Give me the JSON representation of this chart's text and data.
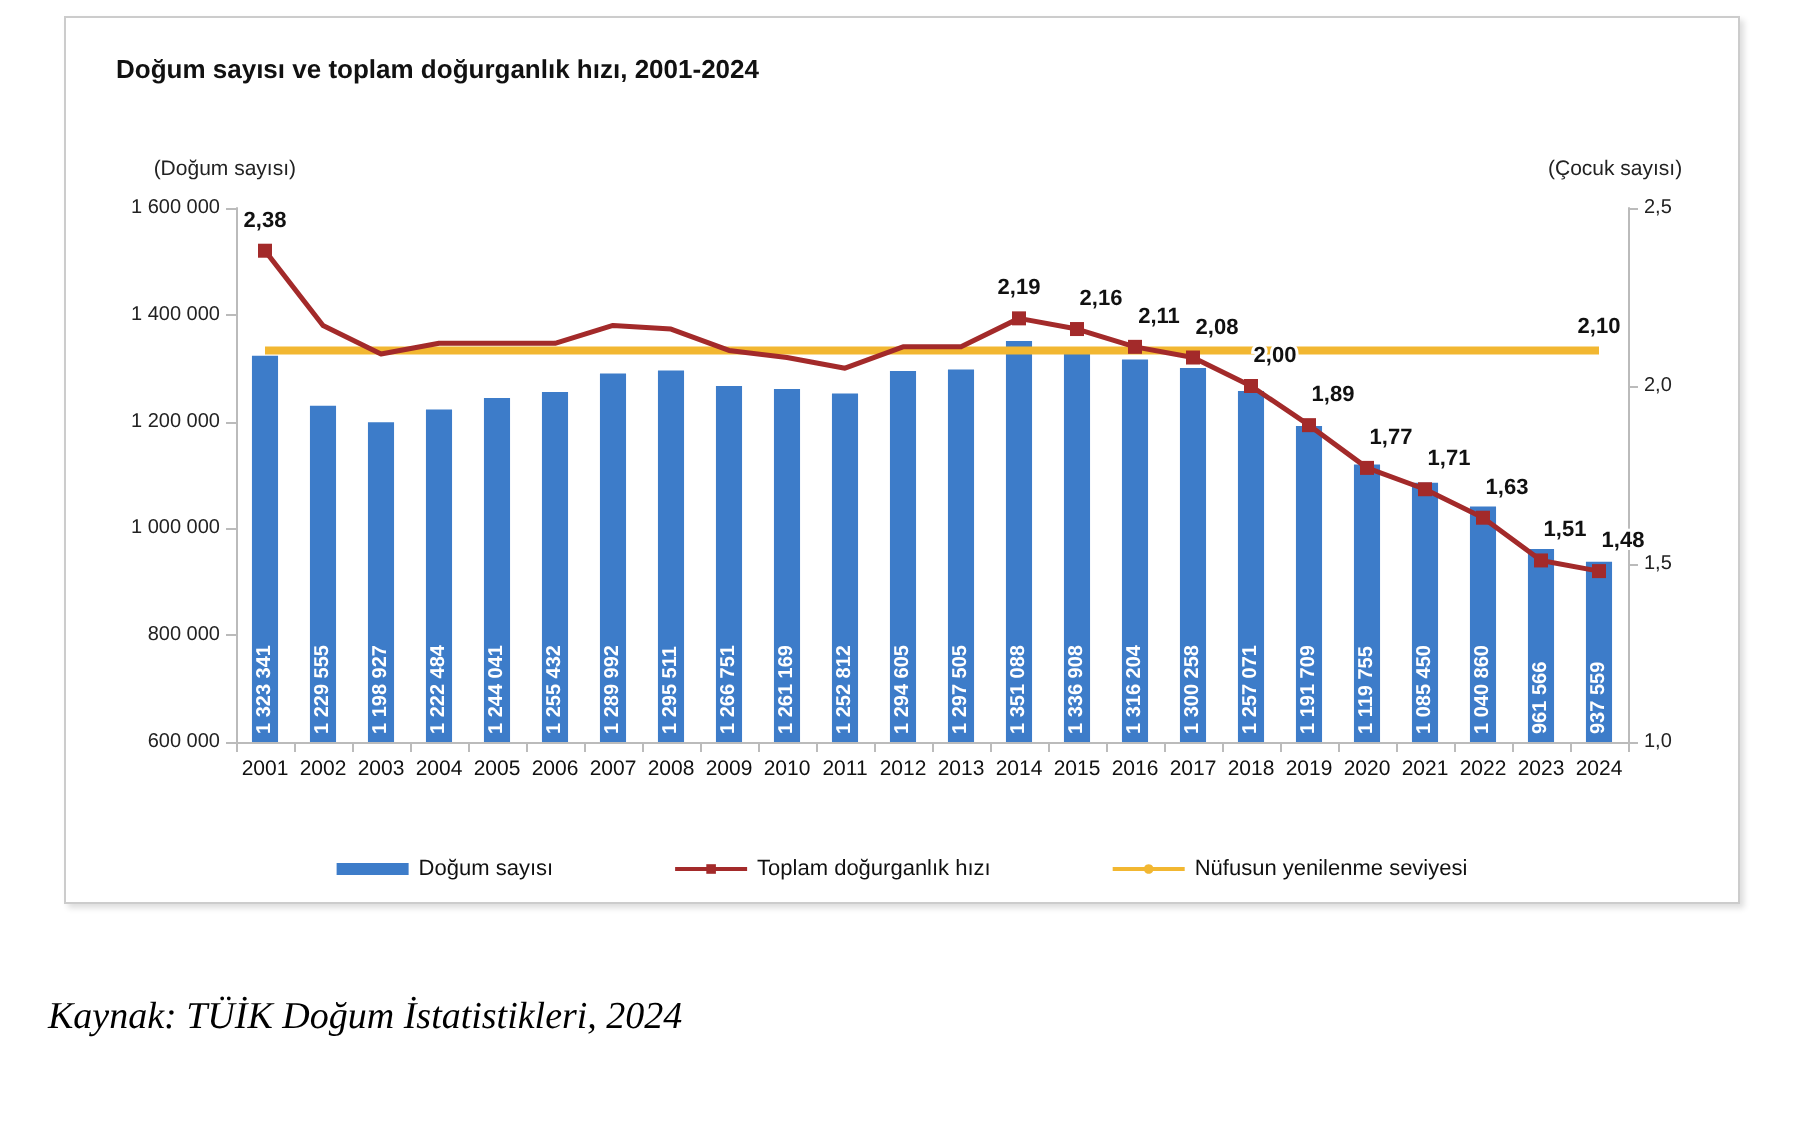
{
  "chart_data": {
    "type": "bar",
    "title": "Doğum sayısı ve toplam doğurganlık hızı, 2001-2024",
    "ylabel": "(Doğum sayısı)",
    "y2label": "(Çocuk sayısı)",
    "categories": [
      "2001",
      "2002",
      "2003",
      "2004",
      "2005",
      "2006",
      "2007",
      "2008",
      "2009",
      "2010",
      "2011",
      "2012",
      "2013",
      "2014",
      "2015",
      "2016",
      "2017",
      "2018",
      "2019",
      "2020",
      "2021",
      "2022",
      "2023",
      "2024"
    ],
    "series": [
      {
        "name": "Doğum sayısı",
        "type": "bar",
        "color": "#3d7cc9",
        "values": [
          1323341,
          1229555,
          1198927,
          1222484,
          1244041,
          1255432,
          1289992,
          1295511,
          1266751,
          1261169,
          1252812,
          1294605,
          1297505,
          1351088,
          1336908,
          1316204,
          1300258,
          1257071,
          1191709,
          1119755,
          1085450,
          1040860,
          961566,
          937559
        ],
        "value_labels": [
          "1 323 341",
          "1 229 555",
          "1 198 927",
          "1 222 484",
          "1 244 041",
          "1 255 432",
          "1 289 992",
          "1 295 511",
          "1 266 751",
          "1 261 169",
          "1 252 812",
          "1 294 605",
          "1 297 505",
          "1 351 088",
          "1 336 908",
          "1 316 204",
          "1 300 258",
          "1 257 071",
          "1 191 709",
          "1 119 755",
          "1 085 450",
          "1 040 860",
          "961 566",
          "937 559"
        ]
      },
      {
        "name": "Toplam doğurganlık hızı",
        "type": "line",
        "axis": "y2",
        "color": "#a32a2a",
        "marker": "square",
        "values": [
          2.38,
          2.17,
          2.09,
          2.12,
          2.12,
          2.12,
          2.17,
          2.16,
          2.1,
          2.08,
          2.05,
          2.11,
          2.11,
          2.19,
          2.16,
          2.11,
          2.08,
          2.0,
          1.89,
          1.77,
          1.71,
          1.63,
          1.51,
          1.48
        ],
        "value_labels": [
          "2,38",
          null,
          null,
          null,
          null,
          null,
          null,
          null,
          null,
          null,
          null,
          null,
          null,
          "2,19",
          "2,16",
          "2,11",
          "2,08",
          "2,00",
          "1,89",
          "1,77",
          "1,71",
          "1,63",
          "1,51",
          "1,48"
        ]
      },
      {
        "name": "Nüfusun yenilenme seviyesi",
        "type": "line",
        "axis": "y2",
        "color": "#f2b731",
        "marker": "none",
        "values": [
          2.1,
          2.1,
          2.1,
          2.1,
          2.1,
          2.1,
          2.1,
          2.1,
          2.1,
          2.1,
          2.1,
          2.1,
          2.1,
          2.1,
          2.1,
          2.1,
          2.1,
          2.1,
          2.1,
          2.1,
          2.1,
          2.1,
          2.1,
          2.1
        ],
        "value_labels": [
          null,
          null,
          null,
          null,
          null,
          null,
          null,
          null,
          null,
          null,
          null,
          null,
          null,
          null,
          null,
          null,
          null,
          null,
          null,
          null,
          null,
          null,
          null,
          "2,10"
        ]
      }
    ],
    "ylim": [
      600000,
      1600000
    ],
    "yticks": [
      {
        "value": 600000,
        "label": "600 000"
      },
      {
        "value": 800000,
        "label": "800 000"
      },
      {
        "value": 1000000,
        "label": "1 000 000"
      },
      {
        "value": 1200000,
        "label": "1 200 000"
      },
      {
        "value": 1400000,
        "label": "1 400 000"
      },
      {
        "value": 1600000,
        "label": "1 600 000"
      }
    ],
    "y2lim": [
      1.0,
      2.5
    ],
    "y2ticks": [
      {
        "value": 1.0,
        "label": "1,0"
      },
      {
        "value": 1.5,
        "label": "1,5"
      },
      {
        "value": 2.0,
        "label": "2,0"
      },
      {
        "value": 2.5,
        "label": "2,5"
      }
    ],
    "grid": false,
    "legend": "bottom",
    "annotations": [
      "Kaynak: TÜİK Doğum İstatistikleri, 2024"
    ]
  }
}
